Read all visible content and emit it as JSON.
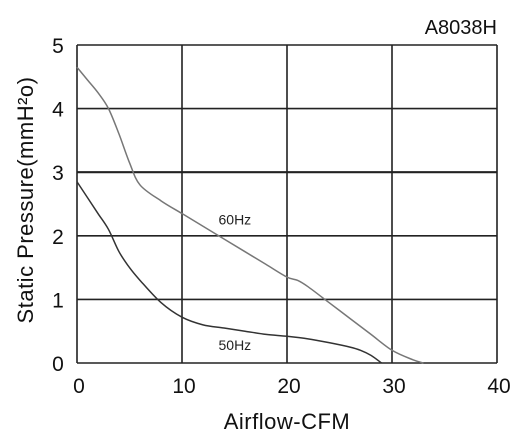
{
  "chart_data": {
    "type": "line",
    "title": "A8038H",
    "xlabel": "Airflow-CFM",
    "ylabel": "Static Pressure(mmH²o)",
    "xlim": [
      0,
      40
    ],
    "ylim": [
      0,
      5
    ],
    "xticks": [
      "0",
      "10",
      "20",
      "30",
      "40"
    ],
    "yticks": [
      "0",
      "1",
      "2",
      "3",
      "4",
      "5"
    ],
    "grid": true,
    "series": [
      {
        "name": "60Hz",
        "color": "#777777",
        "x": [
          0,
          1,
          2,
          3,
          4,
          5,
          6,
          8,
          10,
          12,
          14,
          16,
          18,
          20,
          21,
          22,
          24,
          26,
          28,
          30,
          32,
          33
        ],
        "y": [
          4.65,
          4.45,
          4.25,
          4.0,
          3.6,
          3.15,
          2.8,
          2.55,
          2.35,
          2.15,
          1.95,
          1.75,
          1.55,
          1.35,
          1.3,
          1.2,
          0.95,
          0.7,
          0.45,
          0.2,
          0.05,
          0
        ]
      },
      {
        "name": "50Hz",
        "color": "#333333",
        "x": [
          0,
          1,
          2,
          3,
          4,
          5,
          6,
          8,
          10,
          12,
          14,
          16,
          18,
          20,
          22,
          24,
          26,
          27,
          28,
          29
        ],
        "y": [
          2.85,
          2.6,
          2.35,
          2.1,
          1.75,
          1.5,
          1.3,
          0.95,
          0.72,
          0.6,
          0.55,
          0.5,
          0.45,
          0.42,
          0.38,
          0.32,
          0.25,
          0.2,
          0.12,
          0
        ]
      }
    ]
  }
}
